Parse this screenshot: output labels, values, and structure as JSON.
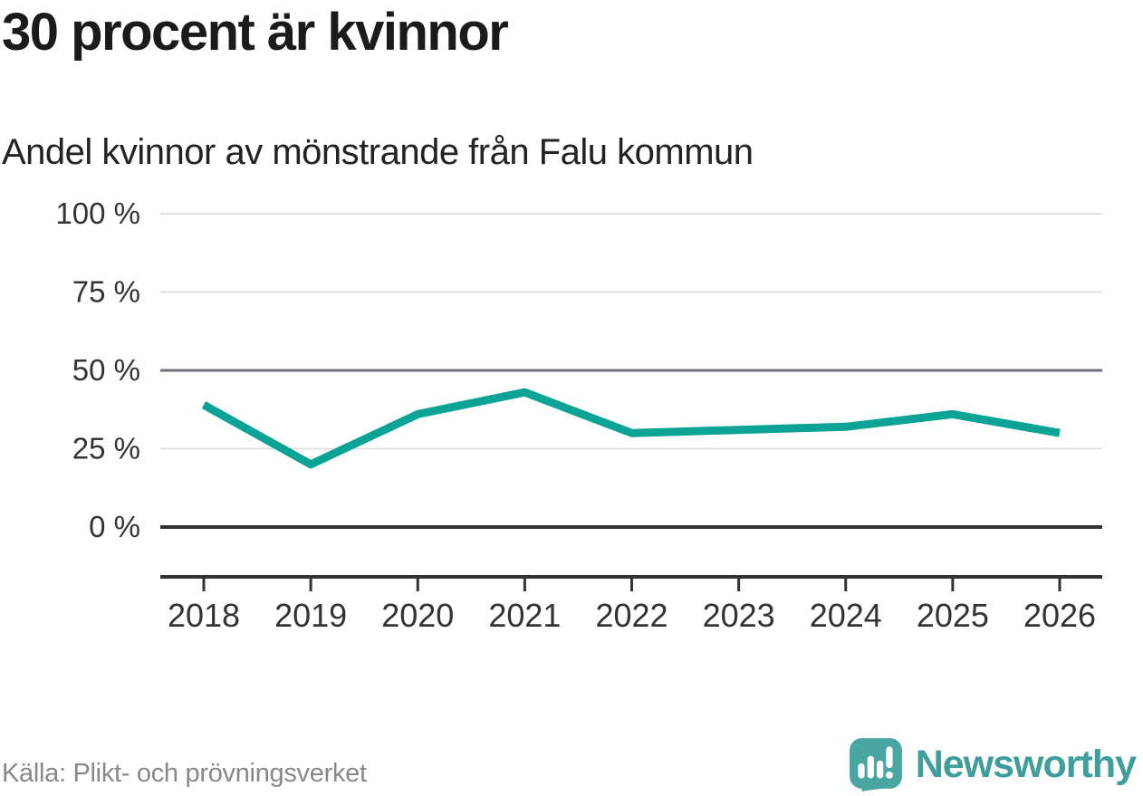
{
  "header": {
    "title": "30 procent är kvinnor",
    "subtitle": "Andel kvinnor av mönstrande från Falu kommun"
  },
  "footer": {
    "source": "Källa: Plikt- och prövningsverket",
    "brand": "Newsworthy",
    "logo_icon": "speech-bubble-bar-chart-icon"
  },
  "colors": {
    "line": "#0aa396",
    "logo_bubble": "#4aa6a3",
    "wordmark": "#3d9e9b",
    "grid_light": "#e1e1e1",
    "grid_mid": "#70707a",
    "axis": "#333333",
    "title_text": "#1b1b1b",
    "source_text": "#888888"
  },
  "chart_data": {
    "type": "line",
    "title": "30 procent är kvinnor",
    "subtitle": "Andel kvinnor av mönstrande från Falu kommun",
    "categories": [
      "2018",
      "2019",
      "2020",
      "2021",
      "2022",
      "2023",
      "2024",
      "2025",
      "2026"
    ],
    "series": [
      {
        "name": "Andel kvinnor av mönstrande, Falu kommun",
        "values": [
          39,
          20,
          36,
          43,
          30,
          31,
          32,
          36,
          30
        ]
      }
    ],
    "unit": "%",
    "xlabel": "",
    "ylabel": "",
    "ylim": [
      0,
      100
    ],
    "yticks": [
      0,
      25,
      50,
      75,
      100
    ],
    "ytick_labels": [
      "0 %",
      "25 %",
      "50 %",
      "75 %",
      "100 %"
    ],
    "grid": "horizontal",
    "legend_position": "none",
    "line_color": "#0aa396"
  }
}
